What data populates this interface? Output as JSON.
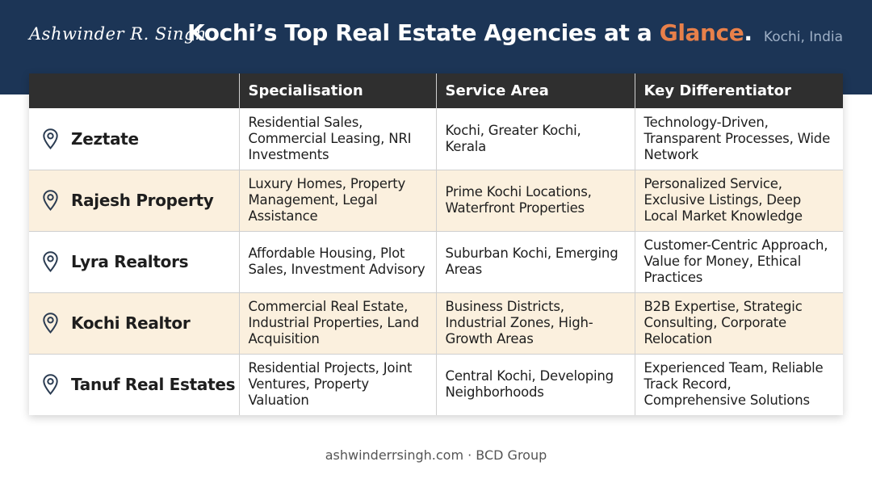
{
  "header": {
    "signature": "Ashwinder R. Singh",
    "title_main": "Kochi’s Top Real Estate Agencies at a ",
    "title_accent": "Glance",
    "title_end": ".",
    "location": "Kochi, India"
  },
  "table": {
    "columns": [
      "",
      "Specialisation",
      "Service Area",
      "Key Differentiator"
    ],
    "rows": [
      {
        "agency": "Zeztate",
        "specialisation": "Residential Sales, Commercial Leasing, NRI Investments",
        "service_area": "Kochi, Greater Kochi, Kerala",
        "differentiator": "Technology-Driven, Transparent Processes, Wide Network"
      },
      {
        "agency": "Rajesh Property",
        "specialisation": "Luxury Homes, Property Management, Legal Assistance",
        "service_area": "Prime Kochi Locations, Waterfront Properties",
        "differentiator": "Personalized Service, Exclusive Listings, Deep Local Market Knowledge"
      },
      {
        "agency": "Lyra Realtors",
        "specialisation": "Affordable Housing, Plot Sales, Investment Advisory",
        "service_area": "Suburban Kochi, Emerging Areas",
        "differentiator": "Customer-Centric Approach, Value for Money, Ethical Practices"
      },
      {
        "agency": "Kochi Realtor",
        "specialisation": "Commercial Real Estate, Industrial Properties, Land Acquisition",
        "service_area": "Business Districts, Industrial Zones, High-Growth Areas",
        "differentiator": "B2B Expertise, Strategic Consulting, Corporate Relocation"
      },
      {
        "agency": "Tanuf Real Estates",
        "specialisation": "Residential Projects, Joint Ventures, Property Valuation",
        "service_area": "Central Kochi, Developing Neighborhoods",
        "differentiator": "Experienced Team, Reliable Track Record, Comprehensive Solutions"
      }
    ]
  },
  "footer": {
    "text": "ashwinderrsingh.com · BCD Group"
  },
  "icons": {
    "row_icon": "location-pin-icon"
  },
  "colors": {
    "header_bg": "#1c3556",
    "accent": "#e8804a",
    "table_header_bg": "#2f2f2f",
    "alt_row_bg": "#fbf0de"
  }
}
